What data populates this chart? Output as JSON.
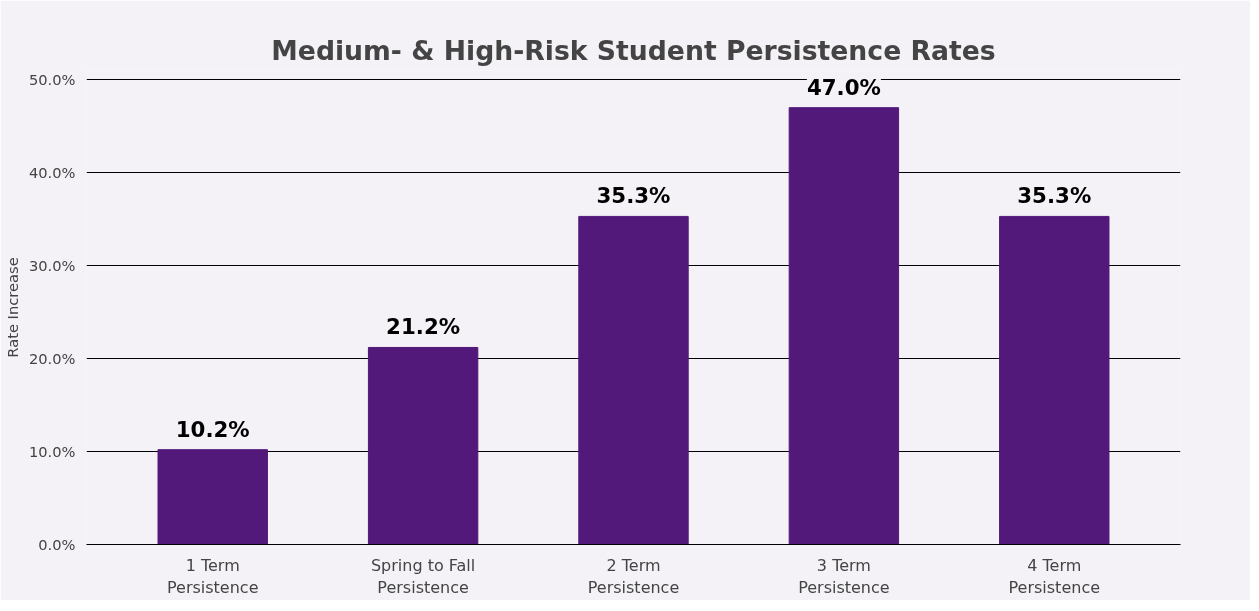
{
  "chart_data": {
    "type": "bar",
    "title": "Medium- & High-Risk Student Persistence Rates",
    "ylabel": "Rate Increase",
    "categories": [
      "1 Term Persistence",
      "Spring to Fall Persistence",
      "2 Term Persistence",
      "3 Term Persistence",
      "4 Term Persistence"
    ],
    "values": [
      10.2,
      21.2,
      35.3,
      47.0,
      35.3
    ],
    "value_labels": [
      "10.2%",
      "21.2%",
      "35.3%",
      "47.0%",
      "35.3%"
    ],
    "color": "#52187a",
    "ylim": [
      0,
      51
    ],
    "yticks": [
      {
        "value": 0,
        "label": "0.0%"
      },
      {
        "value": 10,
        "label": "10.0%"
      },
      {
        "value": 20,
        "label": "20.0%"
      },
      {
        "value": 30,
        "label": "30.0%"
      },
      {
        "value": 40,
        "label": "40.0%"
      },
      {
        "value": 50,
        "label": "50.0%"
      }
    ],
    "grid": "y"
  }
}
